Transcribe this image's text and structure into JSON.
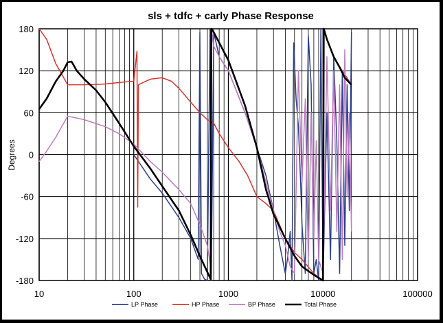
{
  "chart_data": {
    "type": "line",
    "title": "sls + tdfc + carly  Phase Response",
    "xlabel": "",
    "ylabel": "Degrees",
    "x_scale": "log",
    "xlim": [
      10,
      100000
    ],
    "ylim": [
      -180,
      180
    ],
    "x_ticks": [
      10,
      100,
      1000,
      10000,
      100000
    ],
    "x_tick_labels": [
      "10",
      "100",
      "1000",
      "10000",
      "100000"
    ],
    "y_ticks": [
      180,
      120,
      60,
      0,
      -60,
      -120,
      -180
    ],
    "y_tick_labels": [
      "180",
      "120",
      "60",
      "0",
      "-60",
      "-120",
      "-180"
    ],
    "grid": true,
    "legend_position": "bottom",
    "colors": {
      "lp": "#2b3f8c",
      "hp": "#d9342b",
      "bp": "#c07ac0",
      "total": "#000000"
    },
    "series": [
      {
        "name": "LP Phase",
        "color": "#2b3f8c",
        "points": [
          [
            100,
            0
          ],
          [
            150,
            -35
          ],
          [
            200,
            -55
          ],
          [
            300,
            -90
          ],
          [
            400,
            -120
          ],
          [
            480,
            -150
          ],
          [
            500,
            175
          ],
          [
            520,
            -170
          ],
          [
            560,
            -178
          ],
          [
            600,
            -180
          ],
          [
            640,
            180
          ],
          [
            660,
            -180
          ],
          [
            700,
            175
          ],
          [
            800,
            140
          ],
          [
            1000,
            120
          ],
          [
            1500,
            60
          ],
          [
            2000,
            10
          ],
          [
            2500,
            -30
          ],
          [
            3000,
            -80
          ],
          [
            3500,
            -130
          ],
          [
            4000,
            -170
          ],
          [
            4200,
            -150
          ],
          [
            4500,
            -110
          ],
          [
            4700,
            -180
          ],
          [
            4900,
            160
          ],
          [
            5200,
            80
          ],
          [
            5500,
            40
          ],
          [
            5800,
            -40
          ],
          [
            6000,
            -100
          ],
          [
            6500,
            -170
          ],
          [
            7000,
            170
          ],
          [
            7500,
            100
          ],
          [
            8000,
            -170
          ],
          [
            8500,
            -150
          ],
          [
            9000,
            -180
          ],
          [
            9500,
            180
          ],
          [
            10000,
            -180
          ],
          [
            11000,
            60
          ],
          [
            12000,
            -150
          ],
          [
            13000,
            140
          ],
          [
            14000,
            20
          ],
          [
            15000,
            -170
          ],
          [
            16000,
            120
          ],
          [
            17000,
            -130
          ],
          [
            18000,
            100
          ],
          [
            19000,
            -80
          ],
          [
            20000,
            175
          ]
        ]
      },
      {
        "name": "HP Phase",
        "color": "#d9342b",
        "points": [
          [
            10,
            180
          ],
          [
            12,
            165
          ],
          [
            15,
            130
          ],
          [
            20,
            100
          ],
          [
            30,
            100
          ],
          [
            50,
            101
          ],
          [
            80,
            104
          ],
          [
            100,
            105
          ],
          [
            108,
            148
          ],
          [
            110,
            -75
          ],
          [
            112,
            100
          ],
          [
            150,
            108
          ],
          [
            200,
            110
          ],
          [
            250,
            105
          ],
          [
            300,
            95
          ],
          [
            400,
            75
          ],
          [
            500,
            60
          ],
          [
            600,
            50
          ],
          [
            700,
            45
          ],
          [
            800,
            30
          ],
          [
            1000,
            10
          ],
          [
            1300,
            -10
          ],
          [
            1600,
            -30
          ],
          [
            2000,
            -60
          ],
          [
            2500,
            -70
          ],
          [
            3000,
            -80
          ],
          [
            4000,
            -120
          ],
          [
            5000,
            -140
          ],
          [
            6000,
            -150
          ],
          [
            8000,
            -170
          ],
          [
            10000,
            -180
          ],
          [
            10200,
            180
          ],
          [
            11000,
            165
          ],
          [
            13000,
            140
          ],
          [
            15000,
            125
          ],
          [
            17000,
            115
          ],
          [
            20000,
            100
          ]
        ]
      },
      {
        "name": "BP Phase",
        "color": "#c07ac0",
        "points": [
          [
            10,
            -10
          ],
          [
            12,
            5
          ],
          [
            15,
            25
          ],
          [
            20,
            55
          ],
          [
            30,
            50
          ],
          [
            50,
            40
          ],
          [
            70,
            30
          ],
          [
            100,
            15
          ],
          [
            150,
            -10
          ],
          [
            200,
            -25
          ],
          [
            300,
            -50
          ],
          [
            400,
            -70
          ],
          [
            500,
            -100
          ],
          [
            600,
            -130
          ],
          [
            650,
            -160
          ],
          [
            670,
            175
          ],
          [
            700,
            155
          ],
          [
            800,
            140
          ],
          [
            1000,
            120
          ],
          [
            1500,
            60
          ],
          [
            2000,
            10
          ],
          [
            2500,
            -40
          ],
          [
            3000,
            -80
          ],
          [
            3500,
            -110
          ],
          [
            4000,
            -130
          ],
          [
            4500,
            -160
          ],
          [
            5000,
            -170
          ],
          [
            5500,
            120
          ],
          [
            6000,
            -40
          ],
          [
            6500,
            80
          ],
          [
            7000,
            -150
          ],
          [
            7500,
            60
          ],
          [
            8000,
            -120
          ],
          [
            8500,
            20
          ],
          [
            9000,
            -150
          ],
          [
            10000,
            -170
          ],
          [
            11000,
            140
          ],
          [
            12000,
            -80
          ],
          [
            13000,
            120
          ],
          [
            14000,
            -110
          ],
          [
            15000,
            100
          ],
          [
            16000,
            -150
          ],
          [
            17000,
            150
          ],
          [
            18000,
            -60
          ],
          [
            19000,
            60
          ],
          [
            20000,
            -110
          ]
        ]
      },
      {
        "name": "Total Phase",
        "color": "#000000",
        "points": [
          [
            10,
            65
          ],
          [
            12,
            80
          ],
          [
            15,
            105
          ],
          [
            18,
            120
          ],
          [
            20,
            132
          ],
          [
            22,
            133
          ],
          [
            25,
            120
          ],
          [
            30,
            108
          ],
          [
            40,
            92
          ],
          [
            50,
            75
          ],
          [
            70,
            45
          ],
          [
            100,
            12
          ],
          [
            150,
            -20
          ],
          [
            200,
            -45
          ],
          [
            300,
            -80
          ],
          [
            400,
            -115
          ],
          [
            500,
            -145
          ],
          [
            600,
            -168
          ],
          [
            650,
            -178
          ],
          [
            660,
            180
          ],
          [
            700,
            175
          ],
          [
            800,
            160
          ],
          [
            1000,
            135
          ],
          [
            1500,
            70
          ],
          [
            2000,
            10
          ],
          [
            2500,
            -50
          ],
          [
            3000,
            -85
          ],
          [
            4000,
            -120
          ],
          [
            5000,
            -145
          ],
          [
            6000,
            -160
          ],
          [
            8000,
            -172
          ],
          [
            10000,
            -180
          ],
          [
            10200,
            180
          ],
          [
            11000,
            165
          ],
          [
            13000,
            140
          ],
          [
            15000,
            125
          ],
          [
            17000,
            110
          ],
          [
            20000,
            100
          ]
        ]
      }
    ]
  }
}
